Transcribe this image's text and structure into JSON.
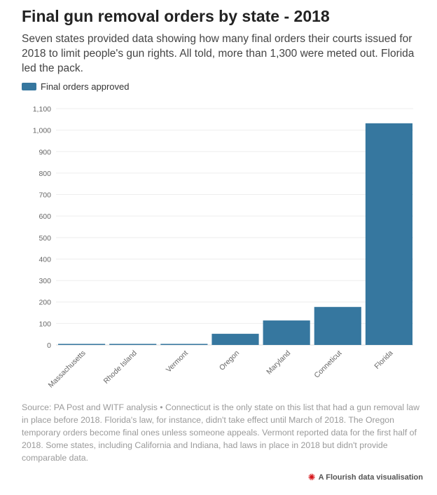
{
  "title": "Final gun removal orders by state - 2018",
  "subtitle": "Seven states provided data showing how many final orders their courts issued for 2018 to limit people's gun rights. All told, more than 1,300 were meted out. Florida led the pack.",
  "legend": {
    "label": "Final orders approved",
    "color": "#36779f"
  },
  "footer": "Source: PA Post and WITF analysis • Connecticut is the only state on this list that had a gun removal law in place before 2018. Florida's law, for instance, didn't take effect until March of 2018. The Oregon temporary orders become final ones unless someone appeals. Vermont reported data for the first half of 2018. Some states, including California and Indiana, had laws in place in 2018 but didn't provide comparable data.",
  "credit": {
    "label": "A Flourish data visualisation",
    "icon": "flourish-logo-icon",
    "icon_color": "#d6161b"
  },
  "chart_data": {
    "type": "bar",
    "categories": [
      "Massachusetts",
      "Rhode Island",
      "Vermont",
      "Oregon",
      "Maryland",
      "Conneticut",
      "Florida"
    ],
    "series": [
      {
        "name": "Final orders approved",
        "values": [
          5,
          5,
          5,
          52,
          114,
          177,
          1032
        ],
        "color": "#36779f"
      }
    ],
    "ylim": [
      0,
      1100
    ],
    "yticks": [
      0,
      100,
      200,
      300,
      400,
      500,
      600,
      700,
      800,
      900,
      1000,
      1100
    ],
    "ytick_labels": [
      "0",
      "100",
      "200",
      "300",
      "400",
      "500",
      "600",
      "700",
      "800",
      "900",
      "1,000",
      "1,100"
    ],
    "grid": true,
    "legend_position": "top-left"
  }
}
